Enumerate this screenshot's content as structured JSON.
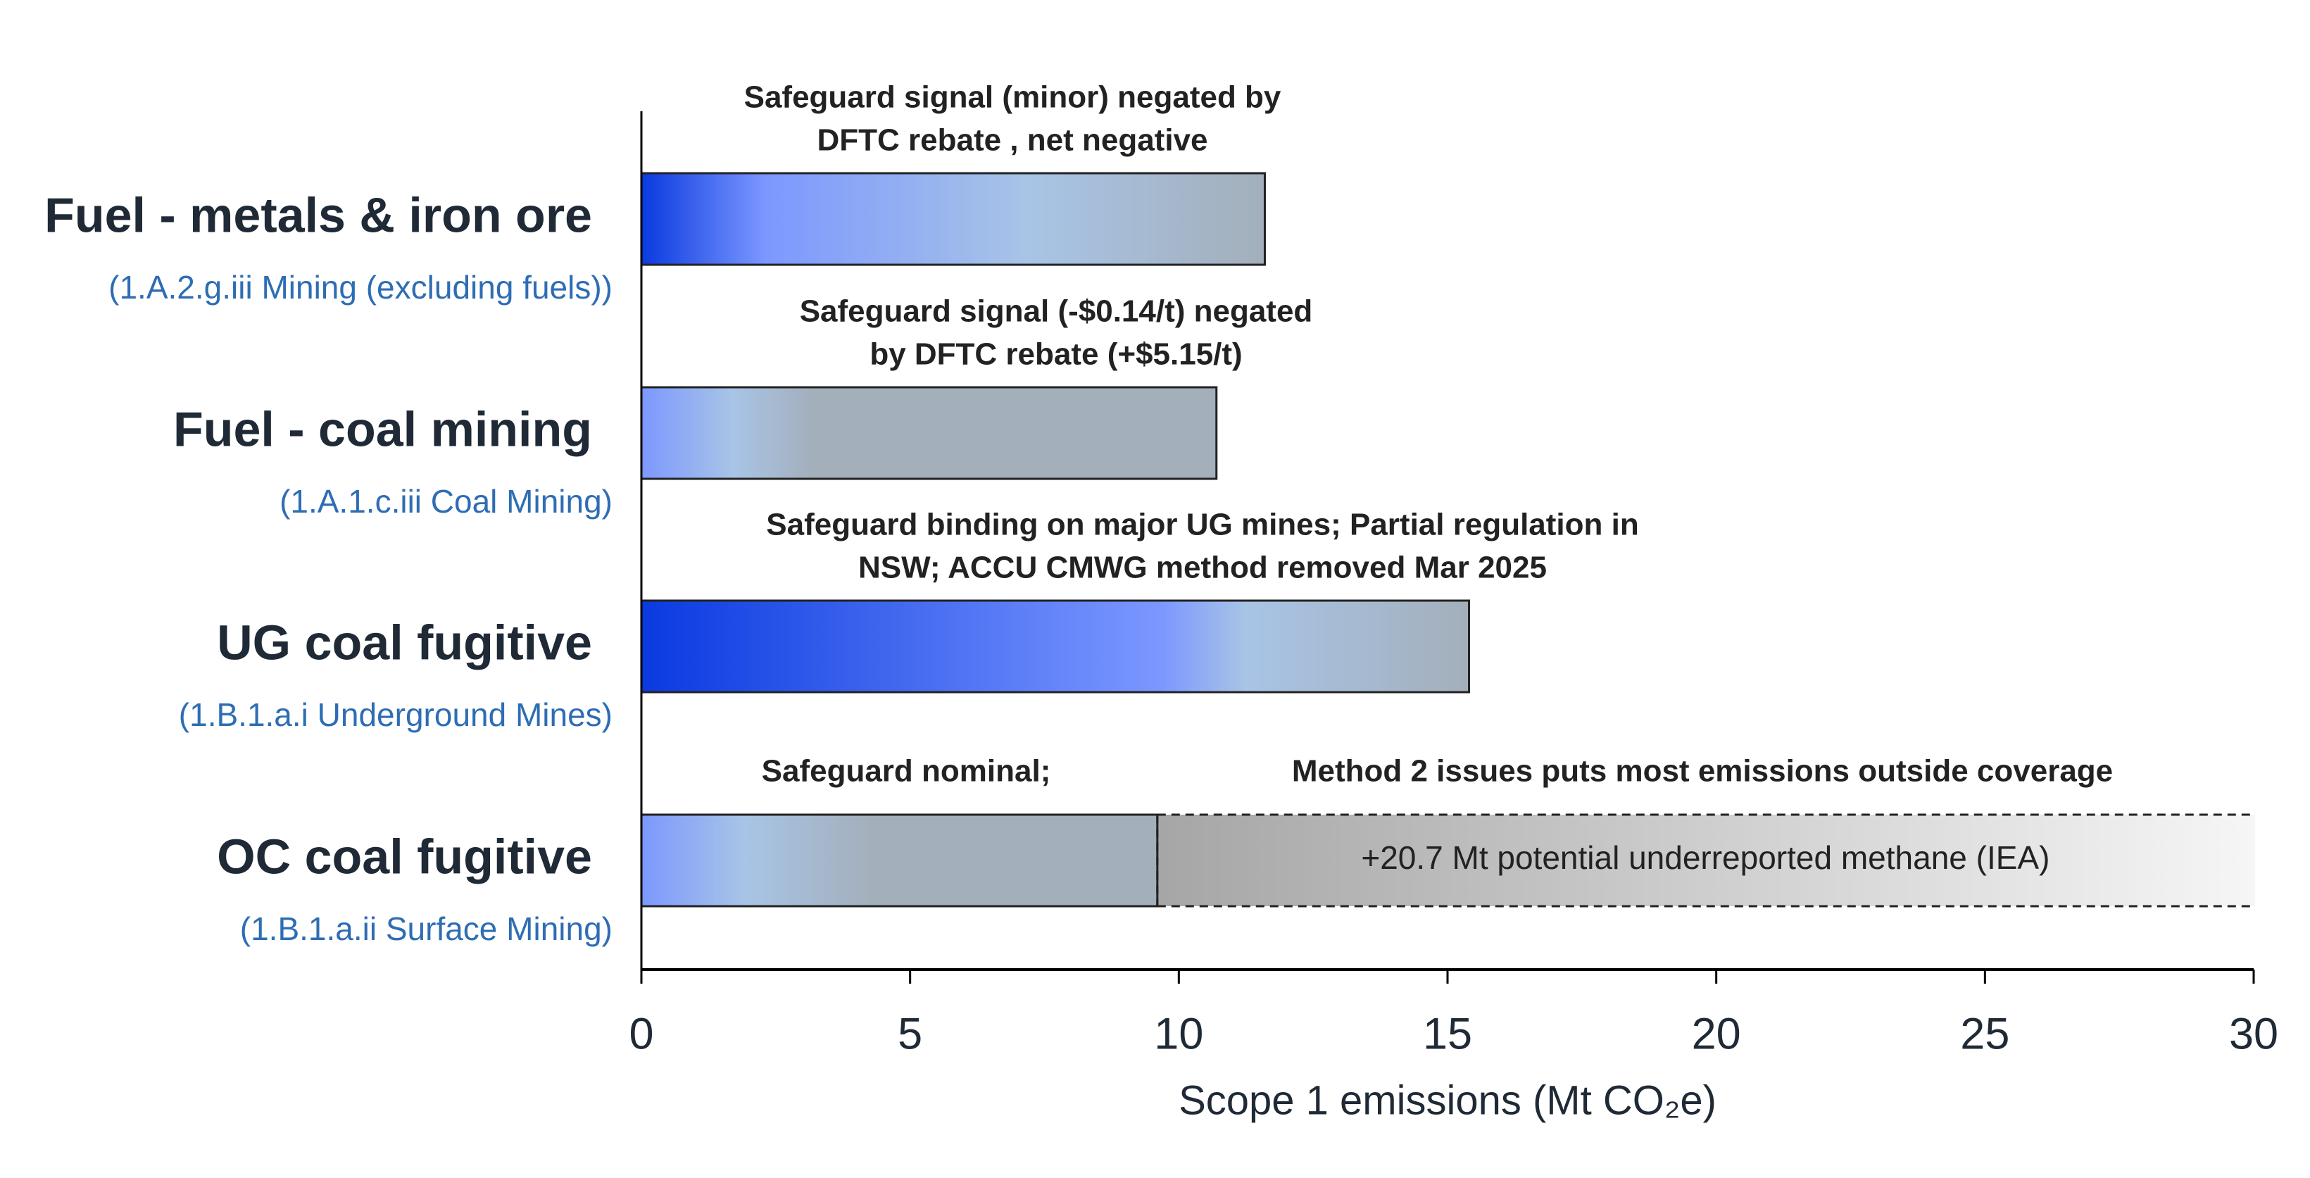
{
  "chart_data": {
    "type": "barh",
    "categories": [
      "Fuel - metals & iron ore",
      "Fuel - coal mining",
      "UG coal fugitive",
      "OC coal fugitive"
    ],
    "category_codes": [
      "(1.A.2.g.iii Mining (excluding fuels))",
      "(1.A.1.c.iii Coal Mining)",
      "(1.B.1.a.i Underground Mines)",
      "(1.B.1.a.ii Surface Mining)"
    ],
    "values": [
      11.6,
      10.7,
      15.4,
      9.6
    ],
    "extension_values": [
      null,
      null,
      null,
      20.7
    ],
    "extension_label": "+20.7 Mt potential underreported methane (IEA)",
    "annotations": [
      [
        "Safeguard signal (minor) negated by",
        "DFTC rebate , net negative"
      ],
      [
        "Safeguard signal (-$0.14/t) negated",
        "by DFTC rebate (+$5.15/t)"
      ],
      [
        "Safeguard binding on major UG mines; Partial regulation in",
        "NSW; ACCU CMWG method removed Mar 2025"
      ],
      [
        "Safeguard nominal;",
        "Method 2 issues puts most emissions outside coverage"
      ]
    ],
    "xlabel": "Scope 1 emissions (Mt CO₂e)",
    "xlim": [
      0,
      30
    ],
    "xticks": [
      0,
      5,
      10,
      15,
      20,
      25,
      30
    ]
  }
}
